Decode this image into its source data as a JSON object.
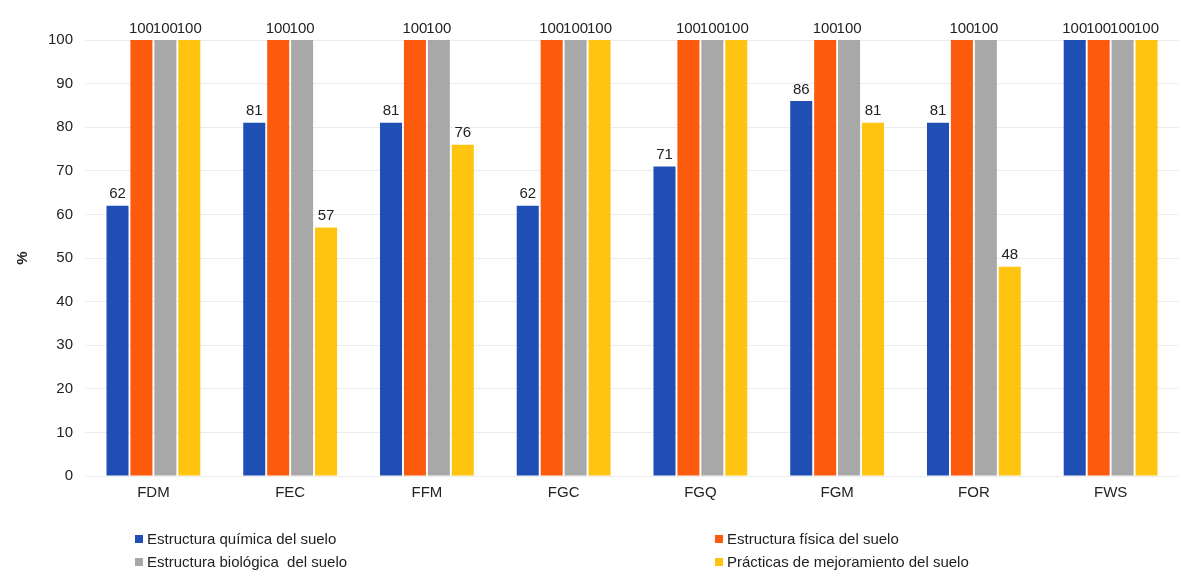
{
  "chart_data": {
    "type": "bar",
    "ylabel": "%",
    "categories": [
      "FDM",
      "FEC",
      "FFM",
      "FGC",
      "FGQ",
      "FGM",
      "FOR",
      "FWS"
    ],
    "series": [
      {
        "name": "Estructura química del suelo",
        "color": "#1f4eb4",
        "values": [
          62,
          81,
          81,
          62,
          71,
          86,
          81,
          100
        ]
      },
      {
        "name": "Estructura física del suelo",
        "color": "#fc5a0c",
        "values": [
          100,
          100,
          100,
          100,
          100,
          100,
          100,
          100
        ]
      },
      {
        "name": "Estructura biológica  del suelo",
        "color": "#a8a8a8",
        "values": [
          100,
          100,
          100,
          100,
          100,
          100,
          100,
          100
        ]
      },
      {
        "name": "Prácticas de mejoramiento del suelo",
        "color": "#ffc40f",
        "values": [
          100,
          57,
          76,
          100,
          100,
          81,
          48,
          100
        ]
      }
    ],
    "ylim": [
      0,
      100
    ],
    "yticks": [
      0,
      10,
      20,
      30,
      40,
      50,
      60,
      70,
      80,
      90,
      100
    ],
    "grid": "y",
    "legend": "bottom",
    "data_labels": true
  }
}
